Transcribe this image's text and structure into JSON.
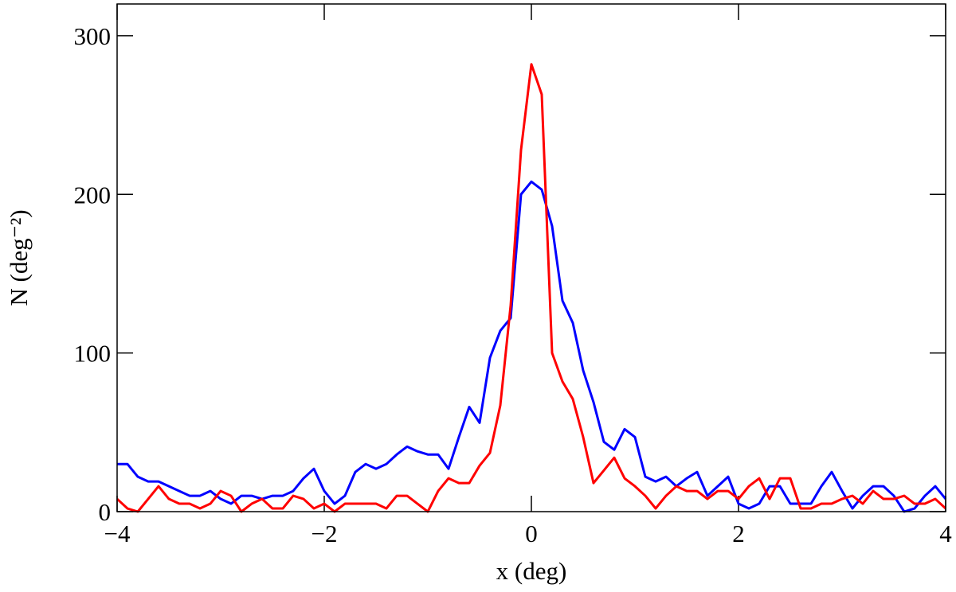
{
  "chart_data": {
    "type": "line",
    "xlabel": "x (deg)",
    "ylabel": "N (deg⁻²)",
    "x": [
      -4.0,
      -3.9,
      -3.8,
      -3.7,
      -3.6,
      -3.5,
      -3.4,
      -3.3,
      -3.2,
      -3.1,
      -3.0,
      -2.9,
      -2.8,
      -2.7,
      -2.6,
      -2.5,
      -2.4,
      -2.3,
      -2.2,
      -2.1,
      -2.0,
      -1.9,
      -1.8,
      -1.7,
      -1.6,
      -1.5,
      -1.4,
      -1.3,
      -1.2,
      -1.1,
      -1.0,
      -0.9,
      -0.8,
      -0.7,
      -0.6,
      -0.5,
      -0.4,
      -0.3,
      -0.2,
      -0.1,
      0.0,
      0.1,
      0.2,
      0.3,
      0.4,
      0.5,
      0.6,
      0.7,
      0.8,
      0.9,
      1.0,
      1.1,
      1.2,
      1.3,
      1.4,
      1.5,
      1.6,
      1.7,
      1.8,
      1.9,
      2.0,
      2.1,
      2.2,
      2.3,
      2.4,
      2.5,
      2.6,
      2.7,
      2.8,
      2.9,
      3.0,
      3.1,
      3.2,
      3.3,
      3.4,
      3.5,
      3.6,
      3.7,
      3.8,
      3.9,
      4.0
    ],
    "series": [
      {
        "color": "#0000ff",
        "values": [
          30,
          30,
          22,
          19,
          19,
          16,
          13,
          10,
          10,
          13,
          8,
          5,
          10,
          10,
          8,
          10,
          10,
          13,
          21,
          27,
          13,
          5,
          10,
          25,
          30,
          27,
          30,
          36,
          41,
          38,
          36,
          36,
          27,
          47,
          66,
          56,
          97,
          114,
          122,
          200,
          208,
          203,
          180,
          133,
          119,
          89,
          69,
          44,
          39,
          52,
          47,
          22,
          19,
          22,
          16,
          21,
          25,
          10,
          16,
          22,
          5,
          2,
          5,
          16,
          16,
          5,
          5,
          5,
          16,
          25,
          13,
          2,
          10,
          16,
          16,
          10,
          0,
          2,
          10,
          16,
          8
        ]
      },
      {
        "color": "#ff0000",
        "values": [
          8,
          2,
          0,
          8,
          16,
          8,
          5,
          5,
          2,
          5,
          13,
          10,
          0,
          5,
          8,
          2,
          2,
          10,
          8,
          2,
          5,
          0,
          5,
          5,
          5,
          5,
          2,
          10,
          10,
          5,
          0,
          13,
          21,
          18,
          18,
          29,
          37,
          67,
          130,
          228,
          282,
          263,
          100,
          82,
          71,
          47,
          18,
          26,
          34,
          21,
          16,
          10,
          2,
          10,
          16,
          13,
          13,
          8,
          13,
          13,
          8,
          16,
          21,
          8,
          21,
          21,
          2,
          2,
          5,
          5,
          8,
          10,
          5,
          13,
          8,
          8,
          10,
          5,
          5,
          8,
          2
        ]
      }
    ],
    "xlim": [
      -4,
      4
    ],
    "xticks": [
      {
        "value": -4,
        "label": "−4"
      },
      {
        "value": -2,
        "label": "−2"
      },
      0,
      2,
      4
    ],
    "ylim": [
      0,
      320
    ],
    "yticks": [
      0,
      100,
      200,
      300
    ]
  }
}
